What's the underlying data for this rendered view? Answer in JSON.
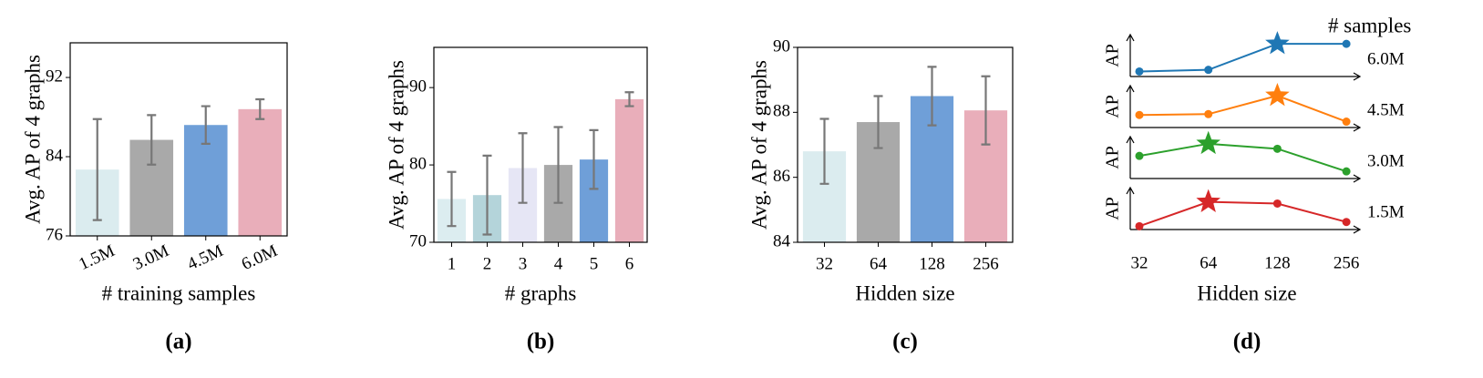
{
  "chart_data": [
    {
      "type": "bar",
      "caption": "(a)",
      "xlabel": "# training samples",
      "ylabel": "Avg. AP of 4 graphs",
      "categories": [
        "1.5M",
        "3.0M",
        "4.5M",
        "6.0M"
      ],
      "values": [
        82.7,
        85.7,
        87.2,
        88.8
      ],
      "errors": [
        5.1,
        2.5,
        1.9,
        1.0
      ],
      "colors": [
        "#dbecef",
        "#a9a9a9",
        "#6f9fd8",
        "#e9aeba"
      ],
      "ylim": [
        76,
        95.5
      ],
      "yticks": [
        76,
        84,
        92
      ],
      "xtick_rotation": -25,
      "error_color": "#777777"
    },
    {
      "type": "bar",
      "caption": "(b)",
      "xlabel": "# graphs",
      "ylabel": "Avg. AP of 4 graphs",
      "categories": [
        "1",
        "2",
        "3",
        "4",
        "5",
        "6"
      ],
      "values": [
        75.6,
        76.1,
        79.6,
        80.0,
        80.7,
        88.5
      ],
      "errors": [
        3.5,
        5.1,
        4.5,
        4.9,
        3.8,
        0.9
      ],
      "colors": [
        "#dcedf0",
        "#b4d4da",
        "#e6e6f5",
        "#a9a9a9",
        "#6f9fd8",
        "#e9aeba"
      ],
      "ylim": [
        70,
        95.2
      ],
      "yticks": [
        70,
        80,
        90
      ],
      "xtick_rotation": 0,
      "error_color": "#777777"
    },
    {
      "type": "bar",
      "caption": "(c)",
      "xlabel": "Hidden size",
      "ylabel": "Avg. AP of 4 graphs",
      "categories": [
        "32",
        "64",
        "128",
        "256"
      ],
      "values": [
        86.8,
        87.7,
        88.5,
        88.06
      ],
      "errors": [
        1.0,
        0.8,
        0.9,
        1.05
      ],
      "colors": [
        "#dbecef",
        "#a9a9a9",
        "#6f9fd8",
        "#e9aeba"
      ],
      "ylim": [
        84,
        90
      ],
      "yticks": [
        84,
        86,
        88,
        90
      ],
      "xtick_rotation": 0,
      "error_color": "#777777"
    },
    {
      "type": "line",
      "caption": "(d)",
      "xlabel": "Hidden size",
      "ylabel": "AP",
      "legend_title": "# samples",
      "categories": [
        "32",
        "64",
        "128",
        "256"
      ],
      "ylim": [
        0,
        1
      ],
      "series": [
        {
          "name": "6.0M",
          "color": "#1f77b4",
          "values": [
            0.12,
            0.16,
            0.78,
            0.78
          ],
          "star_index": 2
        },
        {
          "name": "4.5M",
          "color": "#ff7f0e",
          "values": [
            0.3,
            0.32,
            0.76,
            0.14
          ],
          "star_index": 2
        },
        {
          "name": "3.0M",
          "color": "#2ca02c",
          "values": [
            0.54,
            0.83,
            0.71,
            0.17
          ],
          "star_index": 1
        },
        {
          "name": "1.5M",
          "color": "#d62728",
          "values": [
            0.08,
            0.66,
            0.62,
            0.18
          ],
          "star_index": 1
        }
      ]
    }
  ]
}
